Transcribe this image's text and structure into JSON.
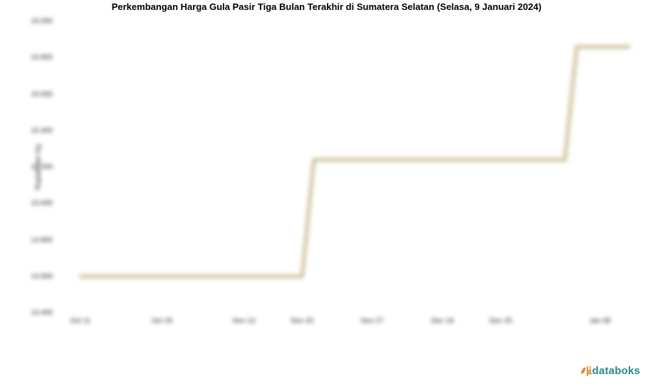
{
  "title": "Perkembangan Harga Gula Pasir Tiga Bulan Terakhir di Sumatera Selatan (Selasa, 9 Januari 2024)",
  "chart": {
    "type": "line",
    "ylabel": "Rupiah per Kg",
    "ylim": [
      14400,
      16000
    ],
    "ytick_step": 200,
    "yticks": [
      14400,
      14600,
      14800,
      15000,
      15200,
      15400,
      15600,
      15800,
      16000
    ],
    "ytick_labels": [
      "14.400",
      "14.600",
      "14.800",
      "15.000",
      "15.200",
      "15.400",
      "15.600",
      "15.800",
      "16.000"
    ],
    "xticks": [
      "Oct 11",
      "Oct 25",
      "Nov 13",
      "Nov 20",
      "Nov 27",
      "Dec 18",
      "Dec 25",
      "Jan 08"
    ],
    "xtick_positions": [
      0.04,
      0.18,
      0.32,
      0.42,
      0.54,
      0.66,
      0.76,
      0.93
    ],
    "series": {
      "x_fraction": [
        0.04,
        0.42,
        0.44,
        0.87,
        0.89,
        0.98
      ],
      "y_value": [
        14600,
        14600,
        15240,
        15240,
        15860,
        15860
      ]
    },
    "line_color": "#b6a56b",
    "line_width": 3.5,
    "background_color": "#ffffff",
    "title_fontsize": 13,
    "label_fontsize": 10,
    "blur_applied": true
  },
  "branding": {
    "name": "databoks",
    "color": "#2a8a8a",
    "spark_color": "#e08a3a"
  }
}
